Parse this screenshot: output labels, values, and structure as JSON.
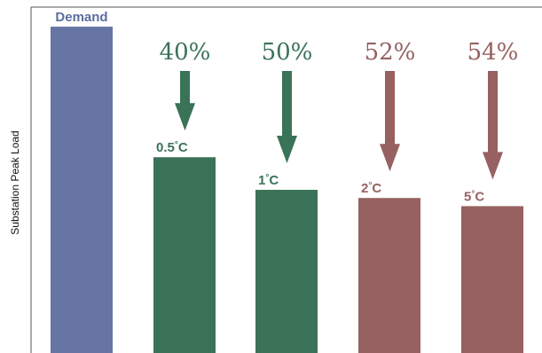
{
  "chart_data": {
    "type": "bar",
    "title": "",
    "xlabel": "",
    "ylabel": "Substation Peak Load",
    "categories": [
      "Demand",
      "0.5°C",
      "1°C",
      "2°C",
      "5°C"
    ],
    "values": [
      100,
      60,
      50,
      47.5,
      45
    ],
    "reductions": [
      "",
      "40%",
      "50%",
      "52%",
      "54%"
    ],
    "ylim": [
      0,
      106
    ],
    "grid": false,
    "bars": [
      {
        "label": "Demand",
        "temp_value": "",
        "temp_unit": "",
        "value": 100,
        "reduction": "",
        "color": "#6675a4",
        "label_color": "#5c6e9e"
      },
      {
        "label": "0.5°C",
        "temp_value": "0.5",
        "temp_unit": "C",
        "value": 60,
        "reduction": "40%",
        "color": "#3a7357",
        "label_color": "#3a7357"
      },
      {
        "label": "1°C",
        "temp_value": "1",
        "temp_unit": "C",
        "value": 50,
        "reduction": "50%",
        "color": "#3a7357",
        "label_color": "#3a7357"
      },
      {
        "label": "2°C",
        "temp_value": "2",
        "temp_unit": "C",
        "value": 47.5,
        "reduction": "52%",
        "color": "#966160",
        "label_color": "#966160"
      },
      {
        "label": "5°C",
        "temp_value": "5",
        "temp_unit": "C",
        "value": 45,
        "reduction": "54%",
        "color": "#966160",
        "label_color": "#966160"
      }
    ]
  }
}
